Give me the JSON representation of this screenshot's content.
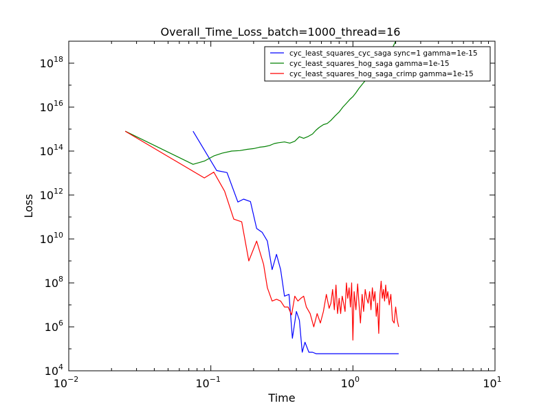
{
  "chart_data": {
    "type": "line",
    "title": "Overall_Time_Loss_batch=1000_thread=16",
    "xlabel": "Time",
    "ylabel": "Loss",
    "xscale": "log",
    "yscale": "log",
    "xlim": [
      0.01,
      10
    ],
    "ylim": [
      10000,
      1e+19
    ],
    "x_ticks": [
      {
        "base": "10",
        "exp": "−2",
        "value": 0.01
      },
      {
        "base": "10",
        "exp": "−1",
        "value": 0.1
      },
      {
        "base": "10",
        "exp": "0",
        "value": 1
      },
      {
        "base": "10",
        "exp": "1",
        "value": 10
      }
    ],
    "y_ticks": [
      {
        "base": "10",
        "exp": "4",
        "value": 10000.0
      },
      {
        "base": "10",
        "exp": "6",
        "value": 1000000.0
      },
      {
        "base": "10",
        "exp": "8",
        "value": 100000000.0
      },
      {
        "base": "10",
        "exp": "10",
        "value": 10000000000.0
      },
      {
        "base": "10",
        "exp": "12",
        "value": 1000000000000.0
      },
      {
        "base": "10",
        "exp": "14",
        "value": 100000000000000.0
      },
      {
        "base": "10",
        "exp": "16",
        "value": 1e+16
      },
      {
        "base": "10",
        "exp": "18",
        "value": 1e+18
      }
    ],
    "legend_position": "top-right",
    "grid": false,
    "series": [
      {
        "name": "cyc_least_squares_cyc_saga sync=1 gamma=1e-15",
        "color": "#0000ff",
        "points": [
          [
            0.075,
            800000000000000.0
          ],
          [
            0.11,
            13000000000000.0
          ],
          [
            0.13,
            10500000000000.0
          ],
          [
            0.155,
            480000000000.0
          ],
          [
            0.17,
            650000000000.0
          ],
          [
            0.19,
            500000000000.0
          ],
          [
            0.21,
            30000000000.0
          ],
          [
            0.23,
            20000000000.0
          ],
          [
            0.25,
            8000000000.0
          ],
          [
            0.27,
            400000000.0
          ],
          [
            0.29,
            2000000000.0
          ],
          [
            0.31,
            400000000.0
          ],
          [
            0.33,
            25000000.0
          ],
          [
            0.355,
            30000000.0
          ],
          [
            0.375,
            300000.0
          ],
          [
            0.4,
            5000000.0
          ],
          [
            0.42,
            2000000.0
          ],
          [
            0.44,
            70000.0
          ],
          [
            0.46,
            200000.0
          ],
          [
            0.49,
            70000.0
          ],
          [
            0.52,
            70000.0
          ],
          [
            0.55,
            60000.0
          ],
          [
            0.7,
            60000.0
          ],
          [
            1.0,
            60000.0
          ],
          [
            1.5,
            60000.0
          ],
          [
            2.1,
            60000.0
          ]
        ]
      },
      {
        "name": "cyc_least_squares_hog_saga gamma=1e-15",
        "color": "#008000",
        "points": [
          [
            0.025,
            800000000000000.0
          ],
          [
            0.075,
            25000000000000.0
          ],
          [
            0.09,
            35000000000000.0
          ],
          [
            0.105,
            60000000000000.0
          ],
          [
            0.12,
            80000000000000.0
          ],
          [
            0.14,
            100000000000000.0
          ],
          [
            0.16,
            105000000000000.0
          ],
          [
            0.18,
            120000000000000.0
          ],
          [
            0.2,
            130000000000000.0
          ],
          [
            0.22,
            150000000000000.0
          ],
          [
            0.24,
            160000000000000.0
          ],
          [
            0.26,
            180000000000000.0
          ],
          [
            0.28,
            220000000000000.0
          ],
          [
            0.3,
            240000000000000.0
          ],
          [
            0.33,
            260000000000000.0
          ],
          [
            0.36,
            230000000000000.0
          ],
          [
            0.39,
            280000000000000.0
          ],
          [
            0.42,
            450000000000000.0
          ],
          [
            0.45,
            380000000000000.0
          ],
          [
            0.48,
            450000000000000.0
          ],
          [
            0.52,
            600000000000000.0
          ],
          [
            0.55,
            900000000000000.0
          ],
          [
            0.58,
            1200000000000000.0
          ],
          [
            0.62,
            1600000000000000.0
          ],
          [
            0.66,
            1800000000000000.0
          ],
          [
            0.7,
            2500000000000000.0
          ],
          [
            0.75,
            4000000000000000.0
          ],
          [
            0.8,
            6000000000000000.0
          ],
          [
            0.85,
            1e+16
          ],
          [
            0.9,
            1.5e+16
          ],
          [
            0.95,
            2.2e+16
          ],
          [
            1.0,
            3e+16
          ],
          [
            1.05,
            4.5e+16
          ],
          [
            1.1,
            7e+16
          ],
          [
            1.15,
            1e+17
          ],
          [
            1.2,
            1.4e+17
          ],
          [
            1.3,
            2.5e+17
          ],
          [
            1.4,
            4e+17
          ],
          [
            1.5,
            6e+17
          ],
          [
            1.6,
            1e+18
          ],
          [
            1.7,
            1.8e+18
          ],
          [
            1.8,
            3e+18
          ],
          [
            1.9,
            5e+18
          ],
          [
            2.0,
            1e+19
          ]
        ]
      },
      {
        "name": "cyc_least_squares_hog_saga_crimp gamma=1e-15",
        "color": "#ff0000",
        "points": [
          [
            0.025,
            800000000000000.0
          ],
          [
            0.09,
            6000000000000.0
          ],
          [
            0.105,
            11000000000000.0
          ],
          [
            0.125,
            1500000000000.0
          ],
          [
            0.145,
            80000000000.0
          ],
          [
            0.165,
            60000000000.0
          ],
          [
            0.185,
            1000000000.0
          ],
          [
            0.21,
            8000000000.0
          ],
          [
            0.235,
            700000000.0
          ],
          [
            0.25,
            60000000.0
          ],
          [
            0.27,
            15000000.0
          ],
          [
            0.29,
            18000000.0
          ],
          [
            0.31,
            15000000.0
          ],
          [
            0.33,
            8000000.0
          ],
          [
            0.35,
            8000000.0
          ],
          [
            0.37,
            3500000.0
          ],
          [
            0.39,
            25000000.0
          ],
          [
            0.41,
            15000000.0
          ],
          [
            0.43,
            20000000.0
          ],
          [
            0.45,
            25000000.0
          ],
          [
            0.47,
            8000000.0
          ],
          [
            0.5,
            4000000.0
          ],
          [
            0.53,
            1000000.0
          ],
          [
            0.56,
            4000000.0
          ],
          [
            0.59,
            1500000.0
          ],
          [
            0.62,
            5000000.0
          ],
          [
            0.65,
            30000000.0
          ],
          [
            0.68,
            7000000.0
          ],
          [
            0.7,
            12000000.0
          ],
          [
            0.72,
            50000000.0
          ],
          [
            0.74,
            6000000.0
          ],
          [
            0.76,
            80000000.0
          ],
          [
            0.78,
            4000000.0
          ],
          [
            0.8,
            20000000.0
          ],
          [
            0.82,
            4000000.0
          ],
          [
            0.84,
            25000000.0
          ],
          [
            0.86,
            12000000.0
          ],
          [
            0.88,
            5000000.0
          ],
          [
            0.9,
            100000000.0
          ],
          [
            0.92,
            20000000.0
          ],
          [
            0.94,
            60000000.0
          ],
          [
            0.96,
            8000000.0
          ],
          [
            0.98,
            100000000.0
          ],
          [
            1.0,
            250000.0
          ],
          [
            1.02,
            40000000.0
          ],
          [
            1.05,
            6000000.0
          ],
          [
            1.08,
            90000000.0
          ],
          [
            1.1,
            15000000.0
          ],
          [
            1.13,
            1500000.0
          ],
          [
            1.16,
            30000000.0
          ],
          [
            1.19,
            5000000.0
          ],
          [
            1.22,
            50000000.0
          ],
          [
            1.25,
            20000000.0
          ],
          [
            1.28,
            12000000.0
          ],
          [
            1.31,
            40000000.0
          ],
          [
            1.34,
            6000000.0
          ],
          [
            1.37,
            60000000.0
          ],
          [
            1.4,
            15000000.0
          ],
          [
            1.43,
            40000000.0
          ],
          [
            1.46,
            3000000.0
          ],
          [
            1.49,
            12000000.0
          ],
          [
            1.52,
            500000.0
          ],
          [
            1.55,
            30000000.0
          ],
          [
            1.58,
            120000000.0
          ],
          [
            1.61,
            20000000.0
          ],
          [
            1.64,
            50000000.0
          ],
          [
            1.67,
            15000000.0
          ],
          [
            1.7,
            80000000.0
          ],
          [
            1.73,
            20000000.0
          ],
          [
            1.76,
            40000000.0
          ],
          [
            1.8,
            10000000.0
          ],
          [
            1.85,
            30000000.0
          ],
          [
            1.9,
            2000000.0
          ],
          [
            1.95,
            1500000.0
          ],
          [
            2.0,
            8000000.0
          ],
          [
            2.05,
            2000000.0
          ],
          [
            2.1,
            1000000.0
          ]
        ]
      }
    ]
  }
}
